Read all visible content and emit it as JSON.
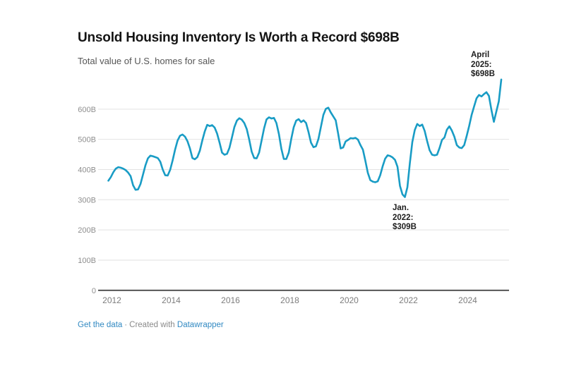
{
  "header": {
    "title": "Unsold Housing Inventory Is Worth a Record $698B",
    "subtitle": "Total value of U.S. homes for sale"
  },
  "annotations": {
    "peak": "April\n2025:\n$698B",
    "trough": "Jan.\n2022:\n$309B"
  },
  "footer": {
    "link1": "Get the data",
    "separator": "·",
    "credit": "Created with",
    "link2": "Datawrapper"
  },
  "chart_data": {
    "type": "line",
    "title": "Unsold Housing Inventory Is Worth a Record $698B",
    "subtitle": "Total value of U.S. homes for sale",
    "unit": "billions of USD",
    "series_name": "Total value of U.S. homes for sale",
    "frequency": "monthly",
    "start": "2012-01",
    "end": "2025-04",
    "values": [
      363,
      375,
      391,
      403,
      408,
      406,
      403,
      398,
      390,
      378,
      348,
      333,
      334,
      352,
      383,
      414,
      437,
      446,
      444,
      441,
      438,
      426,
      400,
      381,
      380,
      399,
      430,
      466,
      496,
      512,
      516,
      509,
      494,
      470,
      438,
      434,
      441,
      462,
      496,
      526,
      548,
      544,
      547,
      539,
      519,
      489,
      456,
      449,
      452,
      472,
      506,
      541,
      562,
      570,
      565,
      554,
      534,
      499,
      459,
      438,
      437,
      456,
      496,
      536,
      566,
      573,
      569,
      571,
      554,
      518,
      469,
      435,
      435,
      456,
      501,
      540,
      562,
      567,
      557,
      563,
      554,
      524,
      489,
      474,
      477,
      501,
      541,
      581,
      601,
      605,
      589,
      576,
      563,
      518,
      470,
      473,
      493,
      498,
      504,
      503,
      505,
      499,
      481,
      466,
      429,
      389,
      365,
      360,
      358,
      361,
      381,
      411,
      436,
      447,
      445,
      440,
      432,
      409,
      346,
      318,
      309,
      341,
      421,
      491,
      531,
      551,
      544,
      549,
      528,
      494,
      464,
      449,
      447,
      449,
      471,
      498,
      506,
      532,
      543,
      529,
      509,
      481,
      473,
      471,
      481,
      511,
      544,
      581,
      609,
      636,
      647,
      642,
      650,
      656,
      644,
      598,
      558,
      592,
      626,
      698
    ],
    "y_ticks": [
      "0",
      "100B",
      "200B",
      "300B",
      "400B",
      "500B",
      "600B"
    ],
    "x_ticks": [
      2012,
      2014,
      2016,
      2018,
      2020,
      2022,
      2024
    ],
    "ylim": [
      0,
      700
    ],
    "grid": "horizontal",
    "legend": "none",
    "line_color": "#199cc5",
    "point_annotations": [
      {
        "label": "April 2025: $698B",
        "x": "2025-04",
        "y": 698
      },
      {
        "label": "Jan. 2022: $309B",
        "x": "2022-01",
        "y": 309
      }
    ]
  }
}
